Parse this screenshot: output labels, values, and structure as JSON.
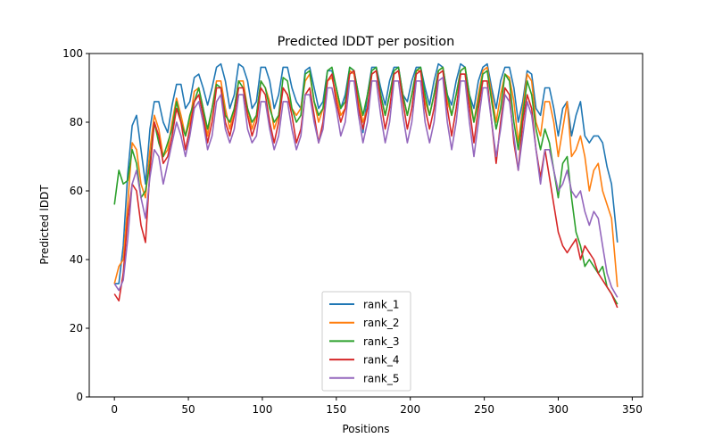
{
  "chart_data": {
    "type": "line",
    "title": "Predicted lDDT per position",
    "xlabel": "Positions",
    "ylabel": "Predicted lDDT",
    "xlim": [
      -17,
      357
    ],
    "ylim": [
      0,
      100
    ],
    "xticks": [
      0,
      50,
      100,
      150,
      200,
      250,
      300,
      350
    ],
    "yticks": [
      0,
      20,
      40,
      60,
      80,
      100
    ],
    "grid": false,
    "legend_position": "lower-center",
    "x": [
      0,
      3,
      6,
      9,
      12,
      15,
      18,
      21,
      24,
      27,
      30,
      33,
      36,
      39,
      42,
      45,
      48,
      51,
      54,
      57,
      60,
      63,
      66,
      69,
      72,
      75,
      78,
      81,
      84,
      87,
      90,
      93,
      96,
      99,
      102,
      105,
      108,
      111,
      114,
      117,
      120,
      123,
      126,
      129,
      132,
      135,
      138,
      141,
      144,
      147,
      150,
      153,
      156,
      159,
      162,
      165,
      168,
      171,
      174,
      177,
      180,
      183,
      186,
      189,
      192,
      195,
      198,
      201,
      204,
      207,
      210,
      213,
      216,
      219,
      222,
      225,
      228,
      231,
      234,
      237,
      240,
      243,
      246,
      249,
      252,
      255,
      258,
      261,
      264,
      267,
      270,
      273,
      276,
      279,
      282,
      285,
      288,
      291,
      294,
      297,
      300,
      303,
      306,
      309,
      312,
      315,
      318,
      321,
      324,
      327,
      330,
      333,
      336,
      340
    ],
    "series": [
      {
        "name": "rank_1",
        "color": "#1f77b4",
        "values": [
          33,
          33,
          44,
          65,
          79,
          82,
          72,
          62,
          78,
          86,
          86,
          80,
          77,
          85,
          91,
          91,
          84,
          86,
          93,
          94,
          90,
          85,
          90,
          96,
          97,
          92,
          84,
          88,
          97,
          96,
          92,
          84,
          86,
          96,
          96,
          92,
          84,
          88,
          96,
          96,
          90,
          86,
          84,
          95,
          96,
          90,
          84,
          86,
          95,
          95,
          90,
          84,
          88,
          96,
          95,
          88,
          77,
          88,
          96,
          96,
          90,
          85,
          92,
          96,
          96,
          88,
          86,
          92,
          96,
          96,
          90,
          85,
          92,
          97,
          96,
          88,
          85,
          92,
          97,
          96,
          88,
          84,
          92,
          96,
          97,
          90,
          84,
          92,
          96,
          96,
          90,
          80,
          86,
          95,
          94,
          84,
          82,
          90,
          90,
          84,
          76,
          84,
          86,
          76,
          82,
          86,
          76,
          74,
          76,
          76,
          74,
          67,
          62,
          45
        ]
      },
      {
        "name": "rank_2",
        "color": "#ff7f0e",
        "values": [
          33,
          38,
          40,
          56,
          74,
          72,
          62,
          58,
          72,
          82,
          78,
          70,
          72,
          80,
          87,
          82,
          76,
          80,
          89,
          90,
          84,
          76,
          84,
          92,
          92,
          84,
          78,
          84,
          92,
          92,
          84,
          78,
          82,
          92,
          90,
          86,
          78,
          82,
          90,
          88,
          84,
          82,
          84,
          92,
          94,
          86,
          80,
          84,
          92,
          93,
          88,
          82,
          84,
          95,
          94,
          86,
          80,
          84,
          94,
          95,
          88,
          82,
          88,
          94,
          95,
          88,
          82,
          88,
          95,
          95,
          86,
          82,
          88,
          95,
          96,
          86,
          82,
          88,
          95,
          96,
          86,
          80,
          88,
          95,
          96,
          88,
          80,
          88,
          94,
          93,
          86,
          74,
          84,
          94,
          92,
          80,
          76,
          86,
          86,
          80,
          70,
          78,
          86,
          70,
          72,
          76,
          70,
          60,
          66,
          68,
          60,
          56,
          52,
          32
        ]
      },
      {
        "name": "rank_3",
        "color": "#2ca02c",
        "values": [
          56,
          66,
          62,
          63,
          72,
          68,
          58,
          60,
          68,
          80,
          74,
          70,
          74,
          78,
          86,
          80,
          76,
          82,
          86,
          90,
          84,
          78,
          84,
          91,
          90,
          82,
          80,
          84,
          92,
          90,
          84,
          80,
          82,
          92,
          90,
          84,
          80,
          82,
          93,
          92,
          84,
          80,
          82,
          94,
          95,
          86,
          82,
          84,
          95,
          96,
          90,
          84,
          86,
          96,
          95,
          88,
          82,
          88,
          95,
          96,
          88,
          82,
          88,
          95,
          96,
          88,
          82,
          88,
          95,
          96,
          88,
          82,
          88,
          95,
          96,
          88,
          82,
          88,
          95,
          96,
          88,
          80,
          86,
          94,
          95,
          86,
          78,
          84,
          94,
          92,
          80,
          72,
          82,
          92,
          88,
          78,
          72,
          78,
          74,
          66,
          58,
          68,
          70,
          58,
          48,
          44,
          38,
          40,
          38,
          36,
          38,
          32,
          30,
          27
        ]
      },
      {
        "name": "rank_4",
        "color": "#d62728",
        "values": [
          30,
          28,
          36,
          52,
          62,
          60,
          50,
          45,
          66,
          80,
          76,
          68,
          70,
          76,
          84,
          80,
          72,
          78,
          86,
          88,
          82,
          74,
          80,
          90,
          90,
          80,
          76,
          82,
          90,
          90,
          82,
          76,
          80,
          90,
          88,
          80,
          74,
          80,
          90,
          88,
          82,
          74,
          78,
          88,
          90,
          82,
          74,
          80,
          92,
          94,
          86,
          80,
          84,
          94,
          95,
          84,
          78,
          84,
          94,
          95,
          86,
          78,
          84,
          94,
          95,
          86,
          78,
          84,
          94,
          95,
          84,
          78,
          84,
          94,
          95,
          84,
          76,
          84,
          94,
          94,
          84,
          74,
          84,
          92,
          92,
          80,
          68,
          80,
          90,
          88,
          74,
          66,
          80,
          88,
          84,
          72,
          64,
          72,
          64,
          56,
          48,
          44,
          42,
          44,
          46,
          40,
          44,
          42,
          40,
          36,
          34,
          32,
          30,
          26
        ]
      },
      {
        "name": "rank_5",
        "color": "#9467bd",
        "values": [
          33,
          31,
          34,
          46,
          62,
          66,
          58,
          52,
          64,
          72,
          70,
          62,
          68,
          74,
          80,
          76,
          70,
          76,
          84,
          86,
          80,
          72,
          76,
          86,
          88,
          78,
          74,
          78,
          88,
          88,
          78,
          74,
          76,
          86,
          86,
          78,
          72,
          76,
          86,
          86,
          78,
          72,
          76,
          88,
          88,
          80,
          74,
          78,
          90,
          90,
          84,
          76,
          80,
          92,
          92,
          82,
          74,
          80,
          92,
          92,
          82,
          74,
          80,
          92,
          92,
          82,
          74,
          80,
          92,
          92,
          80,
          74,
          80,
          92,
          93,
          80,
          72,
          80,
          92,
          92,
          80,
          70,
          80,
          90,
          90,
          80,
          70,
          78,
          88,
          86,
          76,
          66,
          76,
          86,
          82,
          72,
          62,
          72,
          72,
          66,
          60,
          62,
          66,
          60,
          58,
          60,
          54,
          50,
          54,
          52,
          44,
          36,
          32,
          29
        ]
      }
    ]
  }
}
